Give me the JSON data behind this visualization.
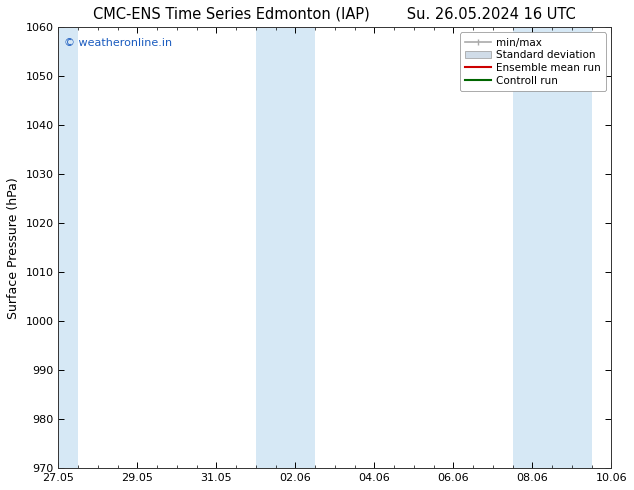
{
  "title_left": "CMC-ENS Time Series Edmonton (IAP)",
  "title_right": "Su. 26.05.2024 16 UTC",
  "ylabel": "Surface Pressure (hPa)",
  "ylim": [
    970,
    1060
  ],
  "yticks": [
    970,
    980,
    990,
    1000,
    1010,
    1020,
    1030,
    1040,
    1050,
    1060
  ],
  "xtick_labels": [
    "27.05",
    "29.05",
    "31.05",
    "02.06",
    "04.06",
    "06.06",
    "08.06",
    "10.06"
  ],
  "shade_color": "#d6e8f5",
  "background_color": "#ffffff",
  "watermark_text": "© weatheronline.in",
  "watermark_color": "#1a5bbf",
  "legend_entries": [
    {
      "label": "min/max",
      "color": "#aaaaaa",
      "type": "errorbar"
    },
    {
      "label": "Standard deviation",
      "color": "#d0dce8",
      "type": "bar"
    },
    {
      "label": "Ensemble mean run",
      "color": "#cc0000",
      "type": "line"
    },
    {
      "label": "Controll run",
      "color": "#006600",
      "type": "line"
    }
  ],
  "figsize": [
    6.34,
    4.9
  ],
  "dpi": 100,
  "title_fontsize": 10.5,
  "axis_fontsize": 9,
  "tick_fontsize": 8,
  "legend_fontsize": 7.5
}
